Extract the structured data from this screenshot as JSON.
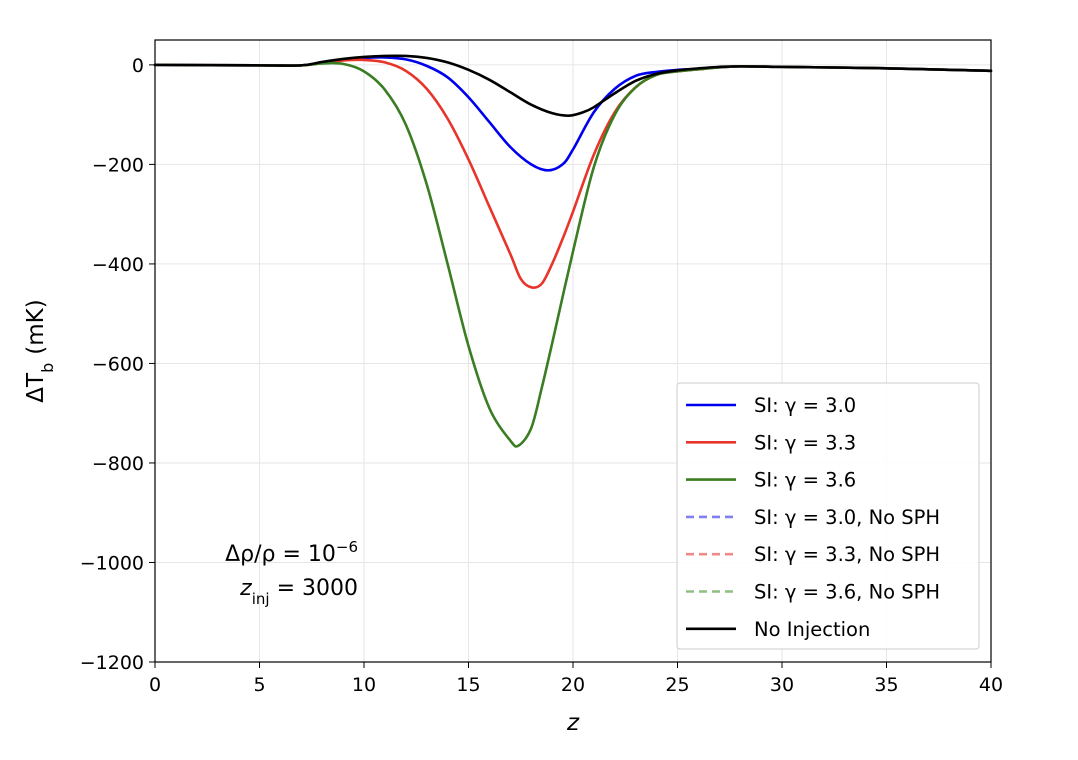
{
  "chart_data": {
    "type": "line",
    "xlabel": "z",
    "ylabel_main": "ΔT",
    "ylabel_sub": "b",
    "ylabel_unit": "(mK)",
    "xlim": [
      0,
      40
    ],
    "ylim": [
      -1200,
      50
    ],
    "xticks": [
      0,
      5,
      10,
      15,
      20,
      25,
      30,
      35,
      40
    ],
    "yticks": [
      0,
      -200,
      -400,
      -600,
      -800,
      -1000,
      -1200
    ],
    "ytick_labels": [
      "0",
      "−200",
      "−400",
      "−600",
      "−800",
      "−1000",
      "−1200"
    ],
    "grid": true,
    "legend_position": "lower-right",
    "annotation": {
      "line1_prefix": "Δρ/ρ = 10",
      "line1_exp": "−6",
      "line2_prefix": "z",
      "line2_sub": "inj",
      "line2_suffix": " = 3000"
    },
    "series": [
      {
        "name": "SI: γ = 3.0",
        "color": "#0000ee",
        "style": "solid",
        "x": [
          0,
          5,
          7,
          8,
          9,
          10,
          11,
          12,
          13,
          14,
          15,
          16,
          17,
          18,
          18.8,
          19.5,
          20,
          21,
          22,
          23,
          24,
          25,
          26,
          27,
          28,
          30,
          32,
          35,
          38,
          40
        ],
        "y": [
          0,
          -1,
          -1,
          5,
          10,
          14,
          15,
          11,
          -2,
          -25,
          -65,
          -115,
          -165,
          -200,
          -212,
          -200,
          -170,
          -95,
          -48,
          -22,
          -14,
          -10,
          -8,
          -5,
          -3,
          -4,
          -5,
          -7,
          -10,
          -12
        ]
      },
      {
        "name": "SI: γ = 3.3",
        "color": "#e8352a",
        "style": "solid",
        "x": [
          0,
          5,
          7,
          8,
          9,
          10,
          11,
          12,
          13,
          14,
          15,
          16,
          17,
          17.5,
          18,
          18.5,
          19,
          19.5,
          20,
          21,
          22,
          23,
          24,
          25,
          26,
          27,
          28,
          30,
          32,
          35,
          38,
          40
        ],
        "y": [
          0,
          -1,
          -1,
          4,
          9,
          10,
          5,
          -12,
          -48,
          -108,
          -190,
          -285,
          -380,
          -430,
          -447,
          -440,
          -400,
          -350,
          -295,
          -180,
          -95,
          -45,
          -20,
          -13,
          -9,
          -5,
          -3,
          -4,
          -5,
          -7,
          -10,
          -12
        ]
      },
      {
        "name": "SI: γ = 3.6",
        "color": "#3a7d22",
        "style": "solid",
        "x": [
          0,
          5,
          7,
          8,
          9,
          10,
          11,
          12,
          13,
          14,
          15,
          16,
          17,
          17.4,
          18,
          18.5,
          19,
          20,
          21,
          22,
          23,
          24,
          25,
          26,
          27,
          28,
          30,
          32,
          35,
          38,
          40
        ],
        "y": [
          0,
          -1,
          -1,
          3,
          2,
          -13,
          -50,
          -120,
          -240,
          -400,
          -565,
          -690,
          -755,
          -765,
          -730,
          -650,
          -560,
          -375,
          -205,
          -100,
          -45,
          -20,
          -13,
          -9,
          -5,
          -3,
          -4,
          -5,
          -7,
          -10,
          -12
        ]
      },
      {
        "name": "SI: γ = 3.0, No SPH",
        "color": "#8080f0",
        "style": "dashed",
        "x": [],
        "y": []
      },
      {
        "name": "SI: γ = 3.3, No SPH",
        "color": "#f08a88",
        "style": "dashed",
        "x": [],
        "y": []
      },
      {
        "name": "SI: γ = 3.6, No SPH",
        "color": "#8fbf80",
        "style": "dashed",
        "x": [],
        "y": []
      },
      {
        "name": "No Injection",
        "color": "#000000",
        "style": "solid",
        "x": [
          0,
          5,
          7,
          8,
          9,
          10,
          11,
          12,
          13,
          14,
          15,
          16,
          17,
          18,
          19,
          19.8,
          20.5,
          21,
          22,
          23,
          24,
          25,
          26,
          27,
          28,
          30,
          32,
          35,
          38,
          40
        ],
        "y": [
          0,
          -1,
          -1,
          6,
          12,
          16,
          18,
          18,
          14,
          5,
          -10,
          -30,
          -55,
          -80,
          -97,
          -102,
          -95,
          -85,
          -57,
          -32,
          -18,
          -11,
          -7,
          -4,
          -3,
          -4,
          -5,
          -7,
          -10,
          -12
        ]
      }
    ]
  }
}
